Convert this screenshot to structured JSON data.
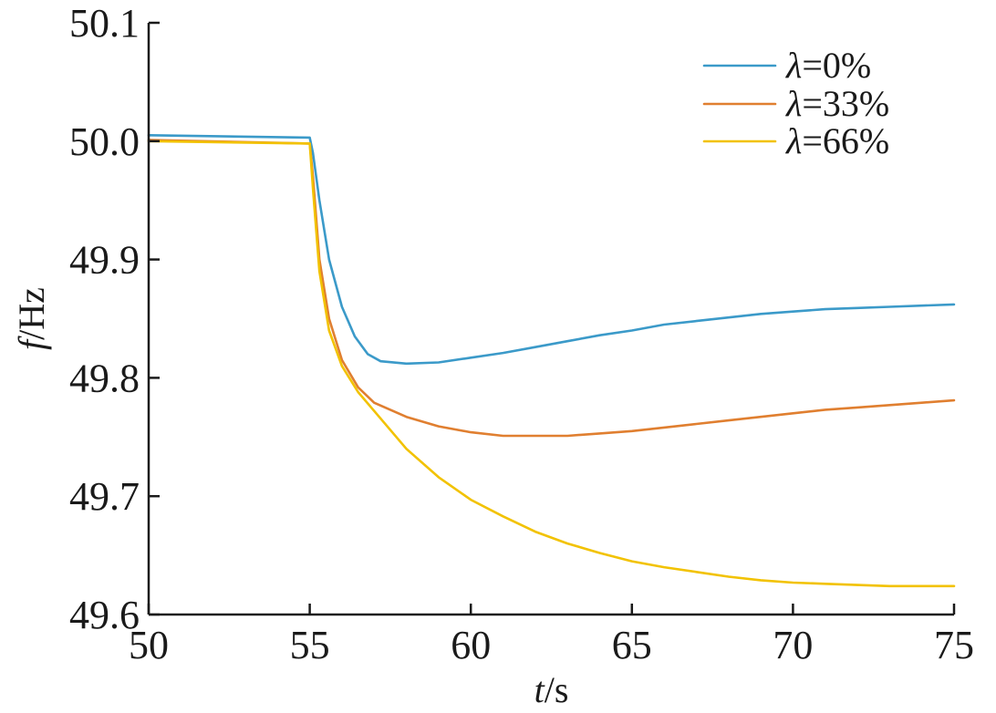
{
  "chart_data": {
    "type": "line",
    "xlabel": {
      "italic": "t",
      "rest": "/s"
    },
    "ylabel": {
      "italic": "f",
      "rest": "/Hz"
    },
    "xlim": [
      50,
      75
    ],
    "ylim": [
      49.6,
      50.1
    ],
    "xticks": [
      50,
      55,
      60,
      65,
      70,
      75
    ],
    "xtick_labels": [
      "50",
      "55",
      "60",
      "65",
      "70",
      "75"
    ],
    "yticks": [
      49.6,
      49.7,
      49.8,
      49.9,
      50.0,
      50.1
    ],
    "ytick_labels": [
      "49.6",
      "49.7",
      "49.8",
      "49.9",
      "50.0",
      "50.1"
    ],
    "grid": false,
    "legend_position": "top-right",
    "series": [
      {
        "name": "λ=0%",
        "legend": {
          "italic": "λ",
          "rest": "=0%"
        },
        "color": "#3b9ac9",
        "x": [
          50,
          55,
          55.1,
          55.3,
          55.6,
          56,
          56.4,
          56.8,
          57.2,
          58,
          59,
          60,
          61,
          62,
          63,
          64,
          65,
          66,
          67,
          68,
          69,
          70,
          71,
          72,
          73,
          74,
          75
        ],
        "y": [
          50.005,
          50.003,
          49.99,
          49.95,
          49.9,
          49.86,
          49.835,
          49.82,
          49.814,
          49.812,
          49.813,
          49.817,
          49.821,
          49.826,
          49.831,
          49.836,
          49.84,
          49.845,
          49.848,
          49.851,
          49.854,
          49.856,
          49.858,
          49.859,
          49.86,
          49.861,
          49.862
        ]
      },
      {
        "name": "λ=33%",
        "legend": {
          "italic": "λ",
          "rest": "=33%"
        },
        "color": "#e07f30",
        "x": [
          50,
          55,
          55.1,
          55.3,
          55.6,
          56,
          56.5,
          57,
          58,
          59,
          60,
          61,
          62,
          63,
          64,
          65,
          66,
          67,
          68,
          69,
          70,
          71,
          72,
          73,
          74,
          75
        ],
        "y": [
          50.001,
          49.998,
          49.97,
          49.9,
          49.85,
          49.815,
          49.792,
          49.779,
          49.767,
          49.759,
          49.754,
          49.751,
          49.751,
          49.751,
          49.753,
          49.755,
          49.758,
          49.761,
          49.764,
          49.767,
          49.77,
          49.773,
          49.775,
          49.777,
          49.779,
          49.781
        ]
      },
      {
        "name": "λ=66%",
        "legend": {
          "italic": "λ",
          "rest": "=66%"
        },
        "color": "#f2c200",
        "x": [
          50,
          55,
          55.1,
          55.3,
          55.6,
          56,
          56.5,
          57,
          58,
          59,
          60,
          61,
          62,
          63,
          64,
          65,
          66,
          67,
          68,
          69,
          70,
          71,
          72,
          73,
          74,
          75
        ],
        "y": [
          50.0,
          49.998,
          49.96,
          49.89,
          49.84,
          49.81,
          49.788,
          49.772,
          49.74,
          49.716,
          49.697,
          49.683,
          49.67,
          49.66,
          49.652,
          49.645,
          49.64,
          49.636,
          49.632,
          49.629,
          49.627,
          49.626,
          49.625,
          49.624,
          49.624,
          49.624
        ]
      }
    ]
  }
}
